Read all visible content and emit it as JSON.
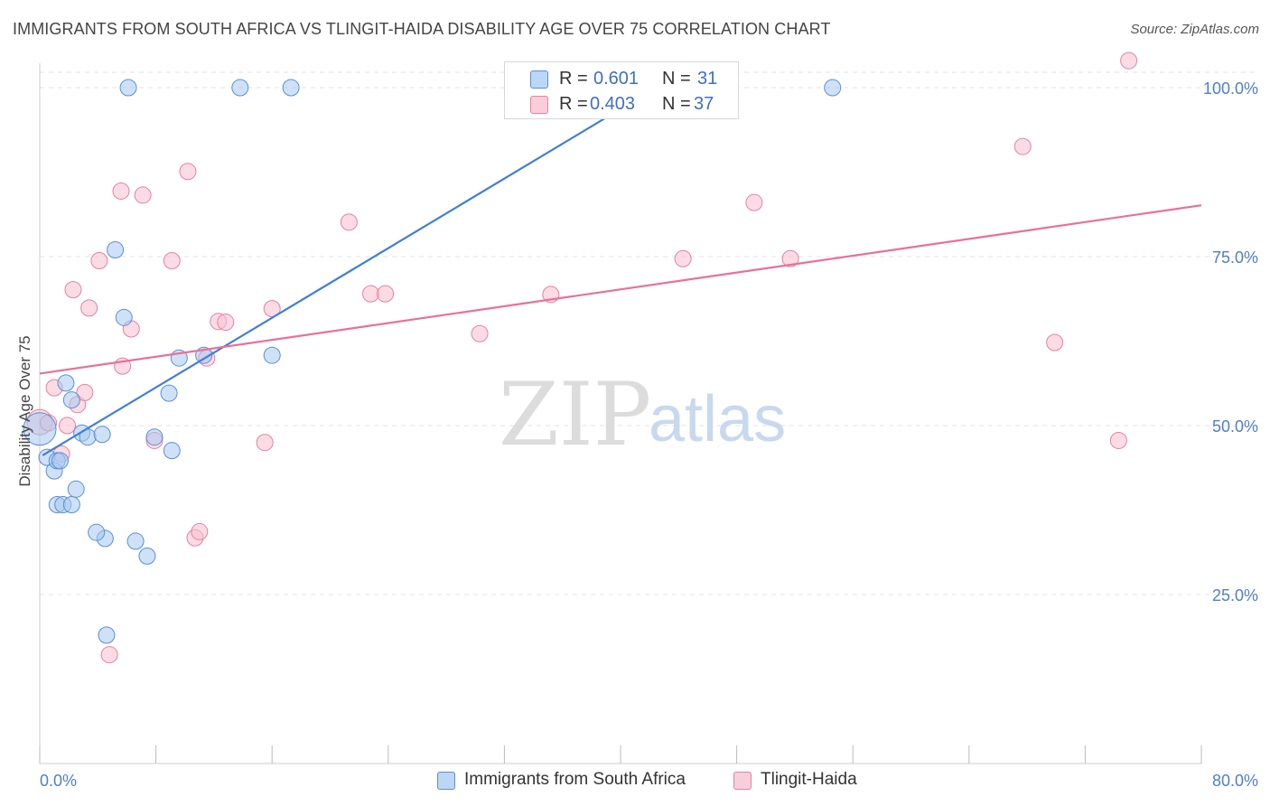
{
  "title": "IMMIGRANTS FROM SOUTH AFRICA VS TLINGIT-HAIDA DISABILITY AGE OVER 75 CORRELATION CHART",
  "source": "Source: ZipAtlas.com",
  "watermark": {
    "zip": "ZIP",
    "atlas": "atlas"
  },
  "legend": {
    "rows": [
      {
        "r_label": "R =",
        "r_value": "0.601",
        "n_label": "N =",
        "n_value": "31",
        "color": "#a8c8f0",
        "border": "#5a8fd6"
      },
      {
        "r_label": "R =",
        "r_value": "0.403",
        "n_label": "N =",
        "n_value": "37",
        "color": "#f8c0d0",
        "border": "#e87fa0"
      }
    ]
  },
  "bottom_legend": {
    "series1": "Immigrants from South Africa",
    "series2": "Tlingit-Haida"
  },
  "chart_data": {
    "type": "scatter",
    "title": "IMMIGRANTS FROM SOUTH AFRICA VS TLINGIT-HAIDA DISABILITY AGE OVER 75 CORRELATION CHART",
    "xlabel": "",
    "ylabel": "Disability Age Over 75",
    "xlim": [
      0,
      80
    ],
    "ylim": [
      0,
      100
    ],
    "x_tick_labels": [
      "0.0%",
      "80.0%"
    ],
    "y_tick_labels": [
      "100.0%",
      "75.0%",
      "50.0%",
      "25.0%"
    ],
    "y_ticks": [
      100,
      75,
      50,
      25
    ],
    "series": [
      {
        "name": "Immigrants from South Africa",
        "color": "#a8c8f0",
        "stroke": "#5a8fd6",
        "line_color": "#3f7fd6",
        "trend": {
          "x0": 0.2,
          "y0": 45.6,
          "x1": 44.0,
          "y1": 102.0
        },
        "points": [
          [
            0.0,
            49.5,
            18
          ],
          [
            0.5,
            45.3,
            9
          ],
          [
            1.0,
            43.3,
            9
          ],
          [
            1.2,
            44.8,
            9
          ],
          [
            1.4,
            44.8,
            9
          ],
          [
            1.2,
            38.3,
            9
          ],
          [
            1.6,
            38.3,
            9
          ],
          [
            2.2,
            38.3,
            9
          ],
          [
            2.5,
            40.6,
            9
          ],
          [
            2.2,
            53.8,
            9
          ],
          [
            1.8,
            56.3,
            9
          ],
          [
            2.9,
            48.9,
            9
          ],
          [
            3.3,
            48.3,
            9
          ],
          [
            4.3,
            48.7,
            9
          ],
          [
            4.5,
            33.3,
            9
          ],
          [
            3.9,
            34.2,
            9
          ],
          [
            5.2,
            76.0,
            9
          ],
          [
            5.8,
            66.0,
            9
          ],
          [
            6.6,
            32.9,
            9
          ],
          [
            7.4,
            30.7,
            9
          ],
          [
            7.9,
            48.3,
            9
          ],
          [
            8.9,
            54.8,
            9
          ],
          [
            9.1,
            46.3,
            9
          ],
          [
            9.6,
            60.0,
            9
          ],
          [
            11.3,
            60.4,
            9
          ],
          [
            16.0,
            60.4,
            9
          ],
          [
            6.1,
            100.0,
            9
          ],
          [
            13.8,
            100.0,
            9
          ],
          [
            17.3,
            100.0,
            9
          ],
          [
            54.6,
            100.0,
            9
          ],
          [
            4.6,
            19.0,
            9
          ]
        ]
      },
      {
        "name": "Tlingit-Haida",
        "color": "#f8c0d0",
        "stroke": "#e87fa0",
        "line_color": "#e8709a",
        "trend": {
          "x0": 0.0,
          "y0": 57.7,
          "x1": 80.0,
          "y1": 82.6
        },
        "points": [
          [
            0.0,
            50.5,
            14
          ],
          [
            0.6,
            50.4,
            9
          ],
          [
            1.0,
            55.6,
            9
          ],
          [
            1.5,
            45.8,
            9
          ],
          [
            1.9,
            50.0,
            9
          ],
          [
            2.3,
            70.1,
            9
          ],
          [
            2.6,
            53.1,
            9
          ],
          [
            3.1,
            54.9,
            9
          ],
          [
            3.4,
            67.4,
            9
          ],
          [
            4.1,
            74.4,
            9
          ],
          [
            5.7,
            58.8,
            9
          ],
          [
            5.6,
            84.7,
            9
          ],
          [
            6.3,
            64.3,
            9
          ],
          [
            7.1,
            84.1,
            9
          ],
          [
            7.9,
            47.8,
            9
          ],
          [
            9.1,
            74.4,
            9
          ],
          [
            10.2,
            87.6,
            9
          ],
          [
            10.7,
            33.4,
            9
          ],
          [
            11.0,
            34.3,
            9
          ],
          [
            11.5,
            60.0,
            9
          ],
          [
            12.3,
            65.4,
            9
          ],
          [
            12.8,
            65.3,
            9
          ],
          [
            15.5,
            47.5,
            9
          ],
          [
            16.0,
            67.3,
            9
          ],
          [
            21.3,
            80.1,
            9
          ],
          [
            22.8,
            69.5,
            9
          ],
          [
            23.8,
            69.5,
            9
          ],
          [
            30.3,
            63.6,
            9
          ],
          [
            35.2,
            69.4,
            9
          ],
          [
            44.3,
            74.7,
            9
          ],
          [
            49.2,
            83.0,
            9
          ],
          [
            51.7,
            74.7,
            9
          ],
          [
            67.7,
            91.3,
            9
          ],
          [
            69.9,
            62.3,
            9
          ],
          [
            74.3,
            47.8,
            9
          ],
          [
            75.0,
            104.0,
            9
          ],
          [
            4.8,
            16.1,
            9
          ]
        ]
      }
    ]
  }
}
